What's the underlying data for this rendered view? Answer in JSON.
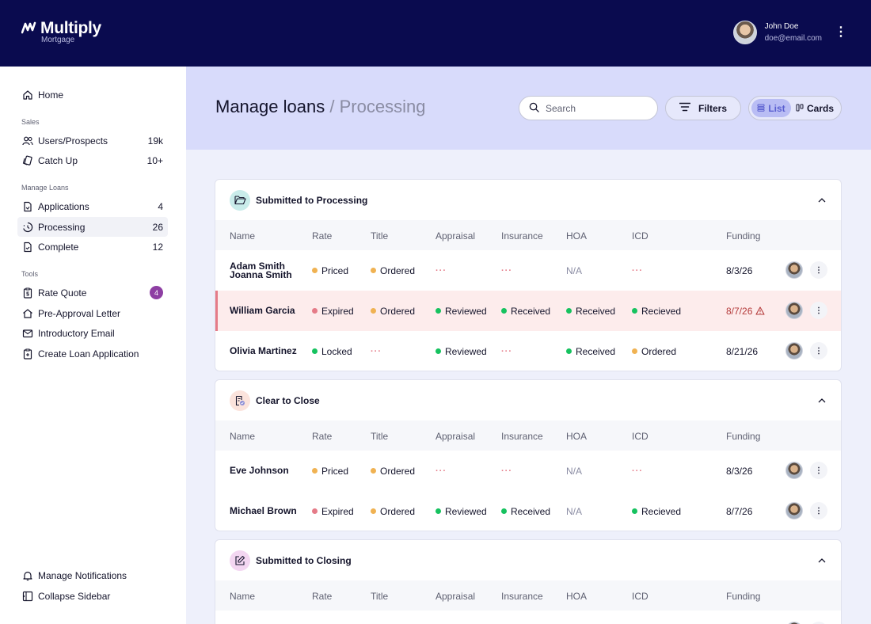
{
  "brand": {
    "name": "Multiply",
    "sub": "Mortgage"
  },
  "user": {
    "name": "John Doe",
    "email": "doe@email.com"
  },
  "sidebar": {
    "home": "Home",
    "sales_section": "Sales",
    "users_prospects": {
      "label": "Users/Prospects",
      "count": "19k"
    },
    "catch_up": {
      "label": "Catch Up",
      "count": "10+"
    },
    "loans_section": "Manage Loans",
    "applications": {
      "label": "Applications",
      "count": "4"
    },
    "processing": {
      "label": "Processing",
      "count": "26"
    },
    "complete": {
      "label": "Complete",
      "count": "12"
    },
    "tools_section": "Tools",
    "rate_quote": {
      "label": "Rate Quote",
      "count": "4"
    },
    "pre_approval": "Pre-Approval Letter",
    "intro_email": "Introductory Email",
    "create_loan": "Create Loan Application",
    "manage_notifications": "Manage Notifications",
    "collapse_sidebar": "Collapse Sidebar"
  },
  "header": {
    "title": "Manage loans",
    "separator": "/",
    "subtitle": "Processing",
    "search_placeholder": "Search",
    "filters_label": "Filters",
    "list_label": "List",
    "cards_label": "Cards"
  },
  "columns": [
    "Name",
    "Rate",
    "Title",
    "Appraisal",
    "Insurance",
    "HOA",
    "ICD",
    "Funding"
  ],
  "status_colors": {
    "orange": "#f0b252",
    "red": "#e57b88",
    "green": "#16c25f"
  },
  "sections": [
    {
      "title": "Submitted to Processing",
      "rows": [
        {
          "name1": "Adam Smith",
          "name2": "Joanna Smith",
          "rate": "Priced",
          "title": "Ordered",
          "appraisal": "···",
          "insurance": "···",
          "hoa": "N/A",
          "icd": "···",
          "funding": "8/3/26"
        },
        {
          "name1": "William Garcia",
          "rate": "Expired",
          "title": "Ordered",
          "appraisal": "Reviewed",
          "insurance": "Received",
          "hoa": "Received",
          "icd": "Recieved",
          "funding": "8/7/26"
        },
        {
          "name1": "Olivia Martinez",
          "rate": "Locked",
          "title": "···",
          "appraisal": "Reviewed",
          "insurance": "···",
          "hoa": "Received",
          "icd": "Ordered",
          "funding": "8/21/26"
        }
      ]
    },
    {
      "title": "Clear to Close",
      "rows": [
        {
          "name1": "Eve Johnson",
          "rate": "Priced",
          "title": "Ordered",
          "appraisal": "···",
          "insurance": "···",
          "hoa": "N/A",
          "icd": "···",
          "funding": "8/3/26"
        },
        {
          "name1": "Michael Brown",
          "rate": "Expired",
          "title": "Ordered",
          "appraisal": "Reviewed",
          "insurance": "Received",
          "hoa": "N/A",
          "icd": "Recieved",
          "funding": "8/7/26"
        }
      ]
    },
    {
      "title": "Submitted to Closing",
      "rows": []
    }
  ]
}
